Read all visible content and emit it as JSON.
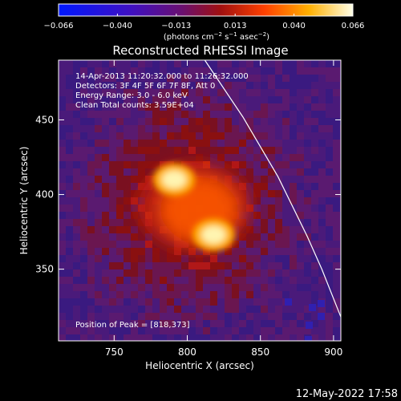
{
  "colorbar": {
    "ticks": [
      "−0.066",
      "−0.040",
      "−0.013",
      "0.013",
      "0.040",
      "0.066"
    ],
    "units_main": "(photons cm",
    "units_sup1": "−2",
    "units_mid1": " s",
    "units_sup2": "−1",
    "units_mid2": " asec",
    "units_sup3": "−2",
    "units_end": ")"
  },
  "title": "Reconstructed RHESSI Image",
  "annotations": {
    "line1": "14-Apr-2013 11:20:32.000 to 11:26:32.000",
    "line2": "Detectors: 3F 4F 5F 6F 7F 8F, Att 0",
    "line3": "Energy Range: 3.0 - 6.0 keV",
    "line4": "Clean    Total counts: 3.59E+04",
    "peak": "Position of Peak = [818,373]"
  },
  "timestamp": "12-May-2022 17:58",
  "chart_data": {
    "type": "heatmap",
    "xlabel": "Heliocentric X (arcsec)",
    "ylabel": "Heliocentric Y (arcsec)",
    "xlim": [
      712,
      905
    ],
    "ylim": [
      302,
      490
    ],
    "xticks": [
      750,
      800,
      850,
      900
    ],
    "yticks": [
      350,
      400,
      450
    ],
    "colormap": [
      "#0018ff",
      "#3a00c8",
      "#5c1080",
      "#7a1020",
      "#c01818",
      "#ff4a00",
      "#ff9a00",
      "#ffe000",
      "#ffffff"
    ],
    "clim": [
      -0.066,
      0.066
    ],
    "sources": [
      {
        "x": 791,
        "y": 410,
        "value": 0.066
      },
      {
        "x": 818,
        "y": 373,
        "value": 0.066
      }
    ],
    "limb": [
      [
        812,
        490
      ],
      [
        838,
        452
      ],
      [
        862,
        412
      ],
      [
        882,
        372
      ],
      [
        892,
        350
      ],
      [
        905,
        318
      ]
    ]
  }
}
